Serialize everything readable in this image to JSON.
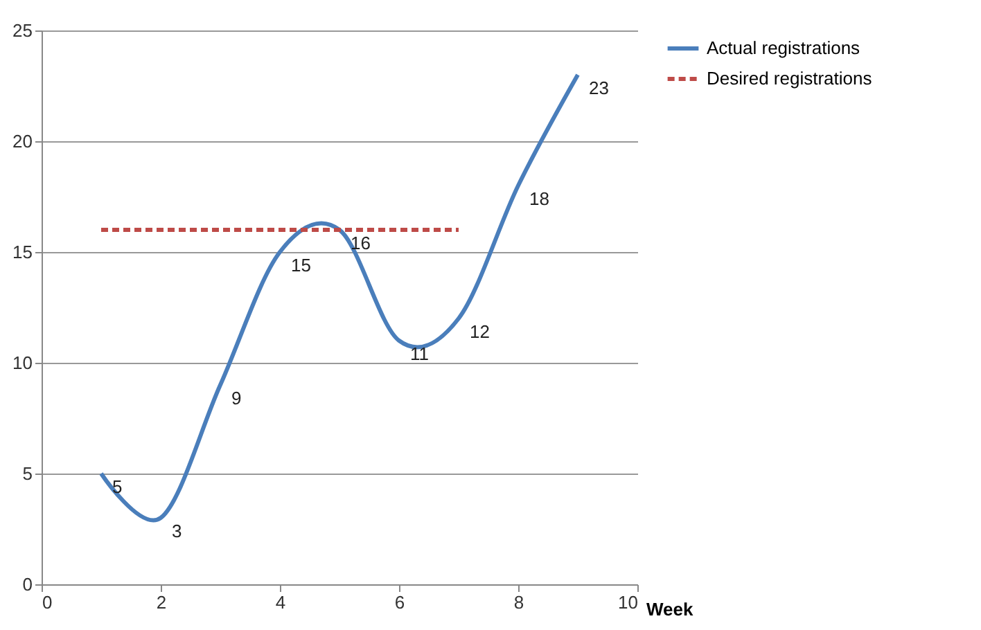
{
  "chart_data": {
    "type": "line",
    "xlabel": "Week",
    "xlim": [
      0,
      10
    ],
    "xticks": [
      0,
      2,
      4,
      6,
      8,
      10
    ],
    "ylim": [
      0,
      25
    ],
    "yticks": [
      0,
      5,
      10,
      15,
      20,
      25
    ],
    "grid": "y",
    "legend": "right",
    "marker": "none",
    "series": [
      {
        "name": "Actual registrations",
        "color": "#4a7ebb",
        "line_style": "solid",
        "x": [
          1,
          2,
          3,
          4,
          5,
          6,
          7,
          8,
          9
        ],
        "values": [
          5,
          3,
          9,
          15,
          16,
          11,
          12,
          18,
          23
        ],
        "value_labels": [
          "5",
          "3",
          "9",
          "15",
          "16",
          "11",
          "12",
          "18",
          "23"
        ]
      },
      {
        "name": "Desired registrations",
        "color": "#be4b48",
        "line_style": "dashed",
        "x": [
          1,
          7
        ],
        "values": [
          16,
          16
        ]
      }
    ]
  }
}
